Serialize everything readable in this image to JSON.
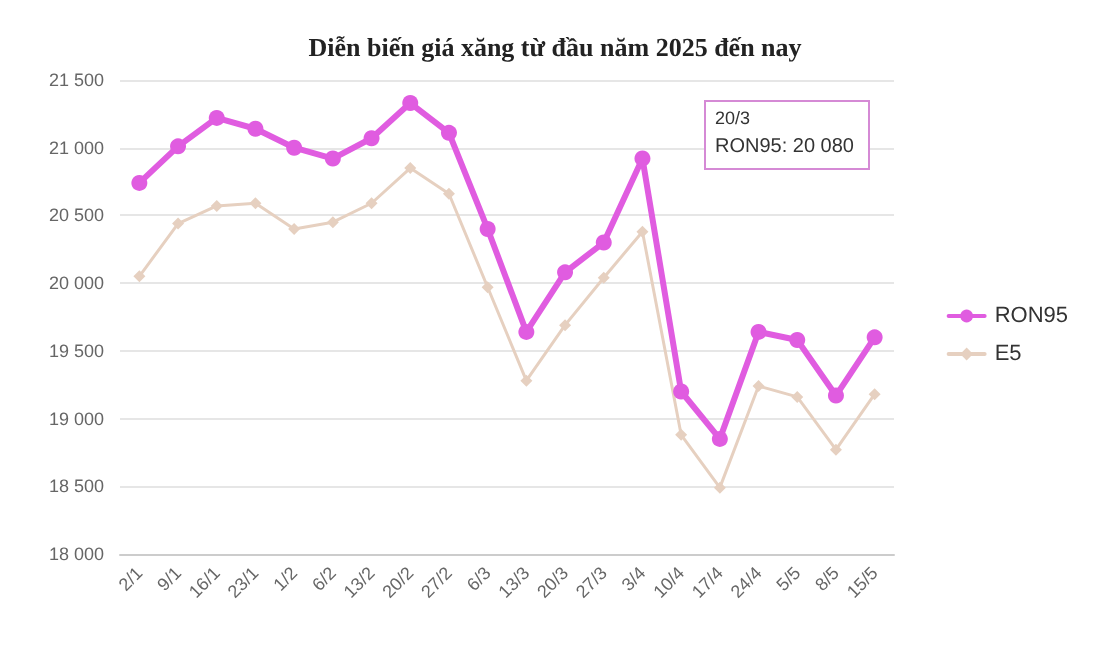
{
  "chart_data": {
    "type": "line",
    "title": "Diễn biến giá xăng từ đầu năm 2025 đến nay",
    "categories": [
      "2/1",
      "9/1",
      "16/1",
      "23/1",
      "1/2",
      "6/2",
      "13/2",
      "20/2",
      "27/2",
      "6/3",
      "13/3",
      "20/3",
      "27/3",
      "3/4",
      "10/4",
      "17/4",
      "24/4",
      "5/5",
      "8/5",
      "15/5"
    ],
    "series": [
      {
        "name": "RON95",
        "color": "#e05ce0",
        "marker": "circle",
        "values": [
          20740,
          21010,
          21220,
          21140,
          21000,
          20920,
          21070,
          21330,
          21110,
          20400,
          19640,
          20080,
          20300,
          20920,
          19200,
          18850,
          19640,
          19580,
          19170,
          19600
        ]
      },
      {
        "name": "E5",
        "color": "#e6d0c0",
        "marker": "diamond",
        "values": [
          20050,
          20440,
          20570,
          20590,
          20400,
          20450,
          20590,
          20850,
          20660,
          19970,
          19280,
          19690,
          20040,
          20380,
          18880,
          18490,
          19240,
          19160,
          18770,
          19180
        ]
      }
    ],
    "ylim": [
      18000,
      21500
    ],
    "yticks": [
      {
        "value": 18000,
        "label": "18 000"
      },
      {
        "value": 18500,
        "label": "18 500"
      },
      {
        "value": 19000,
        "label": "19 000"
      },
      {
        "value": 19500,
        "label": "19 500"
      },
      {
        "value": 20000,
        "label": "20 000"
      },
      {
        "value": 20500,
        "label": "20 500"
      },
      {
        "value": 21000,
        "label": "21 000"
      },
      {
        "value": 21500,
        "label": "21 500"
      }
    ],
    "grid": "y",
    "legend": "right",
    "annotations": [
      "20/3\nRON95: 20 080"
    ]
  }
}
